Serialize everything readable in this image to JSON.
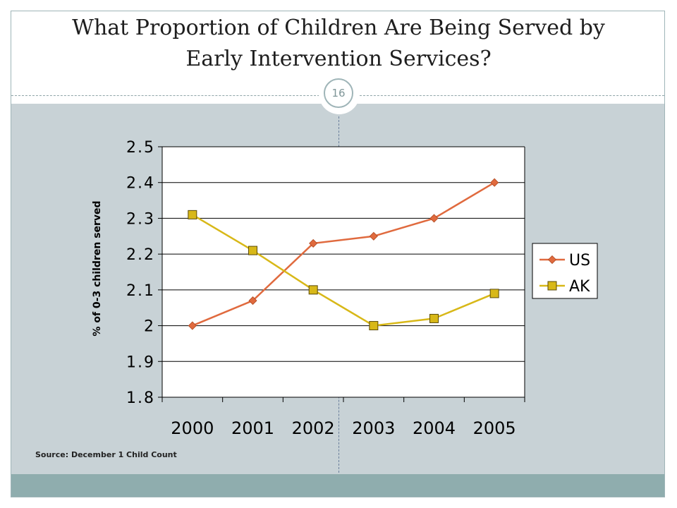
{
  "slide": {
    "title_line1": "What Proportion of Children Are Being Served by",
    "title_line2": "Early Intervention Services?",
    "page_number": "16",
    "source": "Source: December 1 Child Count"
  },
  "colors": {
    "us": "#e06a3e",
    "ak": "#d8b818",
    "panel": "#c8d2d6",
    "footer": "#8fadae"
  },
  "chart_data": {
    "type": "line",
    "title": "",
    "xlabel": "",
    "ylabel": "% of 0-3 children served",
    "categories": [
      "2000",
      "2001",
      "2002",
      "2003",
      "2004",
      "2005"
    ],
    "ylim": [
      1.8,
      2.5
    ],
    "yticks": [
      "2.5",
      "2.4",
      "2.3",
      "2.2",
      "2.1",
      "2",
      "1.9",
      "1.8"
    ],
    "grid": "horizontal",
    "legend_position": "right",
    "series": [
      {
        "name": "US",
        "marker": "diamond",
        "values": [
          2.0,
          2.07,
          2.23,
          2.25,
          2.3,
          2.4
        ]
      },
      {
        "name": "AK",
        "marker": "square",
        "values": [
          2.31,
          2.21,
          2.1,
          2.0,
          2.02,
          2.09
        ]
      }
    ]
  }
}
